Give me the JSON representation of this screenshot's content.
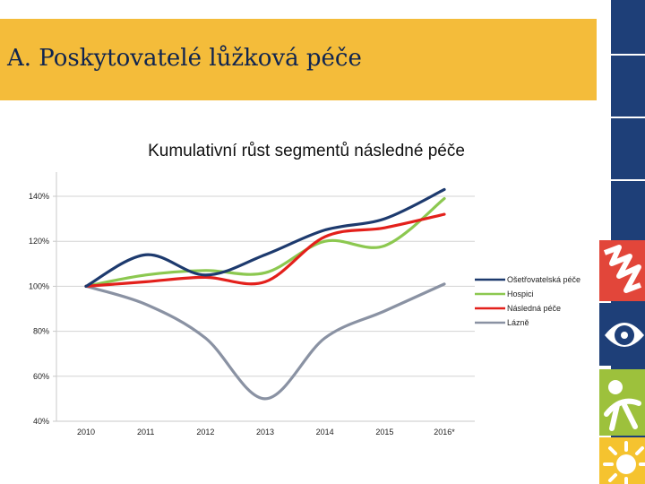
{
  "slide": {
    "title": "A.  Poskytovatelé lůžková péče"
  },
  "decoration": {
    "strip_color": "#1e3f78",
    "tiles": [
      {
        "name": "red-zigzag-tile",
        "color": "#e2463a"
      },
      {
        "name": "eye-tile",
        "color": "#1e3f78"
      },
      {
        "name": "green-figure-tile",
        "color": "#9dc13c"
      },
      {
        "name": "yellow-sun-tile",
        "color": "#f5c32f"
      }
    ]
  },
  "chart_data": {
    "type": "line",
    "title": "Kumulativní růst segmentů následné péče",
    "categories": [
      "2010",
      "2011",
      "2012",
      "2013",
      "2014",
      "2015",
      "2016*"
    ],
    "y_ticks": [
      {
        "value": 40,
        "label": "40%"
      },
      {
        "value": 60,
        "label": "60%"
      },
      {
        "value": 80,
        "label": "80%"
      },
      {
        "value": 100,
        "label": "100%"
      },
      {
        "value": 120,
        "label": "120%"
      },
      {
        "value": 140,
        "label": "140%"
      }
    ],
    "ylim": [
      40,
      150
    ],
    "xlabel": "",
    "ylabel": "",
    "legend_position": "right",
    "series": [
      {
        "name": "Ošetřovatelská péče",
        "color": "#1d3a6e",
        "values": [
          100,
          114,
          105,
          114,
          125,
          130,
          143
        ]
      },
      {
        "name": "Hospici",
        "color": "#8cc850",
        "values": [
          100,
          105,
          107,
          106,
          120,
          118,
          139
        ]
      },
      {
        "name": "Následná péče",
        "color": "#e3201b",
        "values": [
          100,
          102,
          104,
          102,
          122,
          126,
          132
        ]
      },
      {
        "name": "Lázně",
        "color": "#8a92a3",
        "values": [
          100,
          92,
          77,
          50,
          77,
          89,
          101
        ]
      }
    ]
  }
}
